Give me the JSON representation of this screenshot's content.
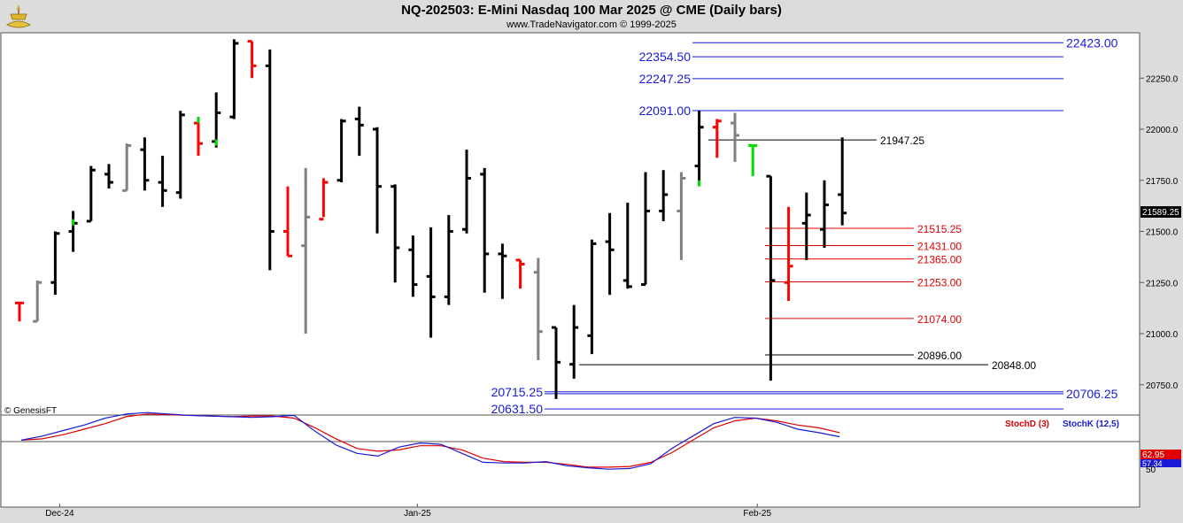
{
  "header": {
    "title": "NQ-202503:  E-Mini Nasdaq 100 Mar 2025 @ CME  (Daily bars)",
    "subtitle": "www.TradeNavigator.com © 1999-2025"
  },
  "watermark": "© GenesisFT",
  "colors": {
    "up_bar": "#000000",
    "down_bar": "#ff0000",
    "neutral_bar": "#808080",
    "highlight_bar": "#00dd00",
    "level_blue": "#1a1ad6",
    "level_red": "#e00000",
    "level_black": "#000000",
    "stoch_k": "#1a1ad6",
    "stoch_d": "#e00000",
    "plot_bg": "#ffffff",
    "frame_bg": "#dcdcdc"
  },
  "chart_data": {
    "type": "ohlc",
    "price_axis": {
      "ticks": [
        20750,
        21000,
        21250,
        21500,
        21750,
        22000,
        22250
      ],
      "tick_labels": [
        "20750.0",
        "21000.0",
        "21250.0",
        "21500.0",
        "21750.0",
        "22000.0",
        "22250.0"
      ],
      "last_price_label": "21589.25"
    },
    "x_axis": {
      "labels": [
        "Dec-24",
        "Jan-25",
        "Feb-25"
      ],
      "label_bar_index": [
        2,
        22,
        41
      ]
    },
    "bars": [
      {
        "o": 21150,
        "h": 21150,
        "l": 21060,
        "c": 21150,
        "col": "red"
      },
      {
        "o": 21060,
        "h": 21260,
        "l": 21060,
        "c": 21250,
        "col": "gray"
      },
      {
        "o": 21250,
        "h": 21500,
        "l": 21190,
        "c": 21490,
        "col": "black"
      },
      {
        "o": 21500,
        "h": 21600,
        "l": 21400,
        "c": 21540,
        "col": "black",
        "accent": 21560
      },
      {
        "o": 21550,
        "h": 21820,
        "l": 21550,
        "c": 21800,
        "col": "black"
      },
      {
        "o": 21780,
        "h": 21830,
        "l": 21710,
        "c": 21740,
        "col": "black"
      },
      {
        "o": 21700,
        "h": 21930,
        "l": 21700,
        "c": 21920,
        "col": "gray"
      },
      {
        "o": 21900,
        "h": 21960,
        "l": 21700,
        "c": 21750,
        "col": "black"
      },
      {
        "o": 21740,
        "h": 21870,
        "l": 21620,
        "c": 21700,
        "col": "black"
      },
      {
        "o": 21690,
        "h": 22090,
        "l": 21660,
        "c": 22070,
        "col": "black"
      },
      {
        "o": 22030,
        "h": 22060,
        "l": 21870,
        "c": 21930,
        "col": "red",
        "accent_hi": 22060
      },
      {
        "o": 21940,
        "h": 22180,
        "l": 21910,
        "c": 22080,
        "col": "black",
        "accent": 21950
      },
      {
        "o": 22060,
        "h": 22440,
        "l": 22050,
        "c": 22420,
        "col": "black"
      },
      {
        "o": 22430,
        "h": 22430,
        "l": 22250,
        "c": 22310,
        "col": "red"
      },
      {
        "o": 22310,
        "h": 22390,
        "l": 21310,
        "c": 21500,
        "col": "black"
      },
      {
        "o": 21500,
        "h": 21720,
        "l": 21380,
        "c": 21380,
        "col": "red"
      },
      {
        "o": 21430,
        "h": 21810,
        "l": 21000,
        "c": 21570,
        "col": "gray"
      },
      {
        "o": 21560,
        "h": 21760,
        "l": 21570,
        "c": 21740,
        "col": "red"
      },
      {
        "o": 21750,
        "h": 22050,
        "l": 21740,
        "c": 22040,
        "col": "black"
      },
      {
        "o": 22050,
        "h": 22110,
        "l": 21870,
        "c": 22020,
        "col": "black"
      },
      {
        "o": 22000,
        "h": 22010,
        "l": 21490,
        "c": 21720,
        "col": "black"
      },
      {
        "o": 21720,
        "h": 21730,
        "l": 21250,
        "c": 21420,
        "col": "black"
      },
      {
        "o": 21410,
        "h": 21480,
        "l": 21180,
        "c": 21240,
        "col": "black"
      },
      {
        "o": 21280,
        "h": 21520,
        "l": 20980,
        "c": 21180,
        "col": "black"
      },
      {
        "o": 21180,
        "h": 21580,
        "l": 21140,
        "c": 21500,
        "col": "black"
      },
      {
        "o": 21510,
        "h": 21900,
        "l": 21490,
        "c": 21760,
        "col": "black"
      },
      {
        "o": 21780,
        "h": 21810,
        "l": 21200,
        "c": 21390,
        "col": "black"
      },
      {
        "o": 21390,
        "h": 21440,
        "l": 21170,
        "c": 21380,
        "col": "black"
      },
      {
        "o": 21360,
        "h": 21360,
        "l": 21220,
        "c": 21340,
        "col": "red"
      },
      {
        "o": 21300,
        "h": 21370,
        "l": 20870,
        "c": 21010,
        "col": "gray"
      },
      {
        "o": 21030,
        "h": 21030,
        "l": 20680,
        "c": 20860,
        "col": "black"
      },
      {
        "o": 20850,
        "h": 21140,
        "l": 20780,
        "c": 21030,
        "col": "black"
      },
      {
        "o": 20990,
        "h": 21460,
        "l": 20900,
        "c": 21440,
        "col": "black"
      },
      {
        "o": 21450,
        "h": 21590,
        "l": 21190,
        "c": 21410,
        "col": "black"
      },
      {
        "o": 21260,
        "h": 21640,
        "l": 21220,
        "c": 21230,
        "col": "black"
      },
      {
        "o": 21240,
        "h": 21790,
        "l": 21240,
        "c": 21600,
        "col": "black"
      },
      {
        "o": 21600,
        "h": 21800,
        "l": 21550,
        "c": 21680,
        "col": "black"
      },
      {
        "o": 21600,
        "h": 21790,
        "l": 21360,
        "c": 21760,
        "col": "gray"
      },
      {
        "o": 21820,
        "h": 22090,
        "l": 21730,
        "c": 22010,
        "col": "black",
        "accent_lo": 21720
      },
      {
        "o": 22010,
        "h": 22050,
        "l": 21860,
        "c": 22040,
        "col": "red"
      },
      {
        "o": 22030,
        "h": 22080,
        "l": 21840,
        "c": 21970,
        "col": "gray"
      },
      {
        "o": 21920,
        "h": 21920,
        "l": 21770,
        "c": 21920,
        "col": "green"
      },
      {
        "o": 21770,
        "h": 21770,
        "l": 20770,
        "c": 21260,
        "col": "black"
      },
      {
        "o": 21250,
        "h": 21620,
        "l": 21160,
        "c": 21330,
        "col": "red"
      },
      {
        "o": 21540,
        "h": 21690,
        "l": 21360,
        "c": 21580,
        "col": "black"
      },
      {
        "o": 21510,
        "h": 21750,
        "l": 21420,
        "c": 21630,
        "col": "black"
      },
      {
        "o": 21680,
        "h": 21960,
        "l": 21530,
        "c": 21590,
        "col": "black"
      }
    ],
    "levels": [
      {
        "value": 22423.0,
        "label": "22423.00",
        "color": "blue",
        "side": "right"
      },
      {
        "value": 22354.5,
        "label": "22354.50",
        "color": "blue",
        "side": "left"
      },
      {
        "value": 22247.25,
        "label": "22247.25",
        "color": "blue",
        "side": "left"
      },
      {
        "value": 22091.0,
        "label": "22091.00",
        "color": "blue",
        "side": "left"
      },
      {
        "value": 21947.25,
        "label": "21947.25",
        "color": "black",
        "side": "right"
      },
      {
        "value": 21515.25,
        "label": "21515.25",
        "color": "red",
        "side": "right"
      },
      {
        "value": 21431.0,
        "label": "21431.00",
        "color": "red",
        "side": "right"
      },
      {
        "value": 21365.0,
        "label": "21365.00",
        "color": "red",
        "side": "right"
      },
      {
        "value": 21253.0,
        "label": "21253.00",
        "color": "red",
        "side": "right"
      },
      {
        "value": 21074.0,
        "label": "21074.00",
        "color": "red",
        "side": "right"
      },
      {
        "value": 20896.0,
        "label": "20896.00",
        "color": "black",
        "side": "right"
      },
      {
        "value": 20848.0,
        "label": "20848.00",
        "color": "black",
        "side": "right"
      },
      {
        "value": 20715.25,
        "label": "20715.25",
        "color": "blue",
        "side": "left"
      },
      {
        "value": 20706.25,
        "label": "20706.25",
        "color": "blue",
        "side": "right"
      },
      {
        "value": 20631.5,
        "label": "20631.50",
        "color": "blue",
        "side": "left"
      }
    ],
    "stochastic": {
      "legend": [
        "StochD (3)",
        "StochK (12,5)"
      ],
      "tick": "50",
      "last_d_label": "62.95",
      "last_k_label": "57.34",
      "k": [
        52,
        58,
        66,
        74,
        84,
        90,
        92,
        90,
        88,
        87,
        86,
        85,
        86,
        88,
        65,
        45,
        33,
        29,
        42,
        48,
        46,
        33,
        20,
        19,
        19,
        21,
        15,
        12,
        10,
        11,
        18,
        40,
        58,
        76,
        85,
        84,
        78,
        68,
        63,
        57
      ],
      "d": [
        52,
        54,
        60,
        68,
        76,
        86,
        90,
        89,
        88,
        87,
        86,
        87,
        87,
        84,
        70,
        54,
        40,
        36,
        38,
        44,
        44,
        38,
        26,
        21,
        20,
        20,
        17,
        13,
        13,
        14,
        20,
        34,
        52,
        70,
        80,
        84,
        80,
        74,
        70,
        63
      ]
    }
  }
}
